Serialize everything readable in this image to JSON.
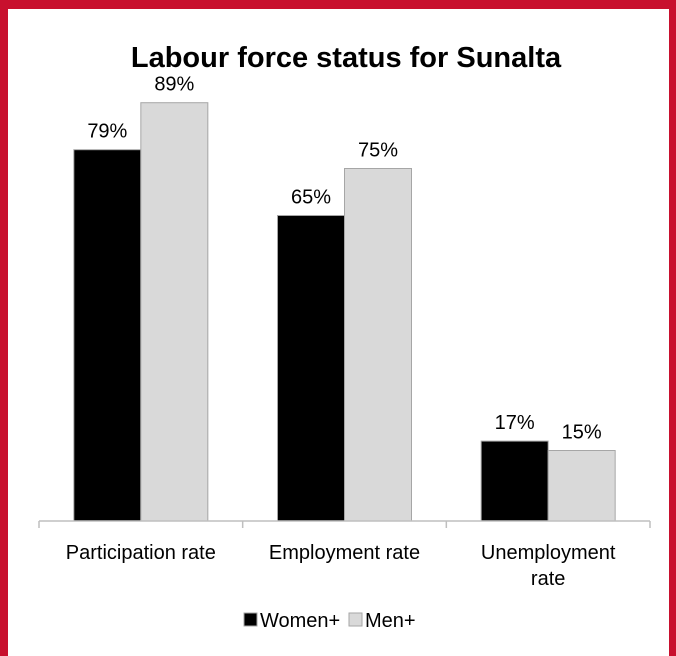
{
  "chart_data": {
    "type": "bar",
    "title": "Labour force status for Sunalta",
    "categories": [
      "Participation rate",
      "Employment rate",
      "Unemployment rate"
    ],
    "category_lines": [
      [
        "Participation rate"
      ],
      [
        "Employment rate"
      ],
      [
        "Unemployment",
        "rate"
      ]
    ],
    "series": [
      {
        "name": "Women+",
        "values": [
          79,
          65,
          17
        ],
        "labels": [
          "79%",
          "65%",
          "17%"
        ],
        "color": "#000000"
      },
      {
        "name": "Men+",
        "values": [
          89,
          75,
          15
        ],
        "labels": [
          "89%",
          "75%",
          "15%"
        ],
        "color": "#d9d9d9"
      }
    ],
    "ylim": [
      0,
      100
    ],
    "grid": false,
    "legend": "bottom-center",
    "xlabel": "",
    "ylabel": ""
  },
  "colors": {
    "frame": "#c8102e",
    "axis": "#bfbfbf",
    "bar_outline": "#a6a6a6"
  }
}
